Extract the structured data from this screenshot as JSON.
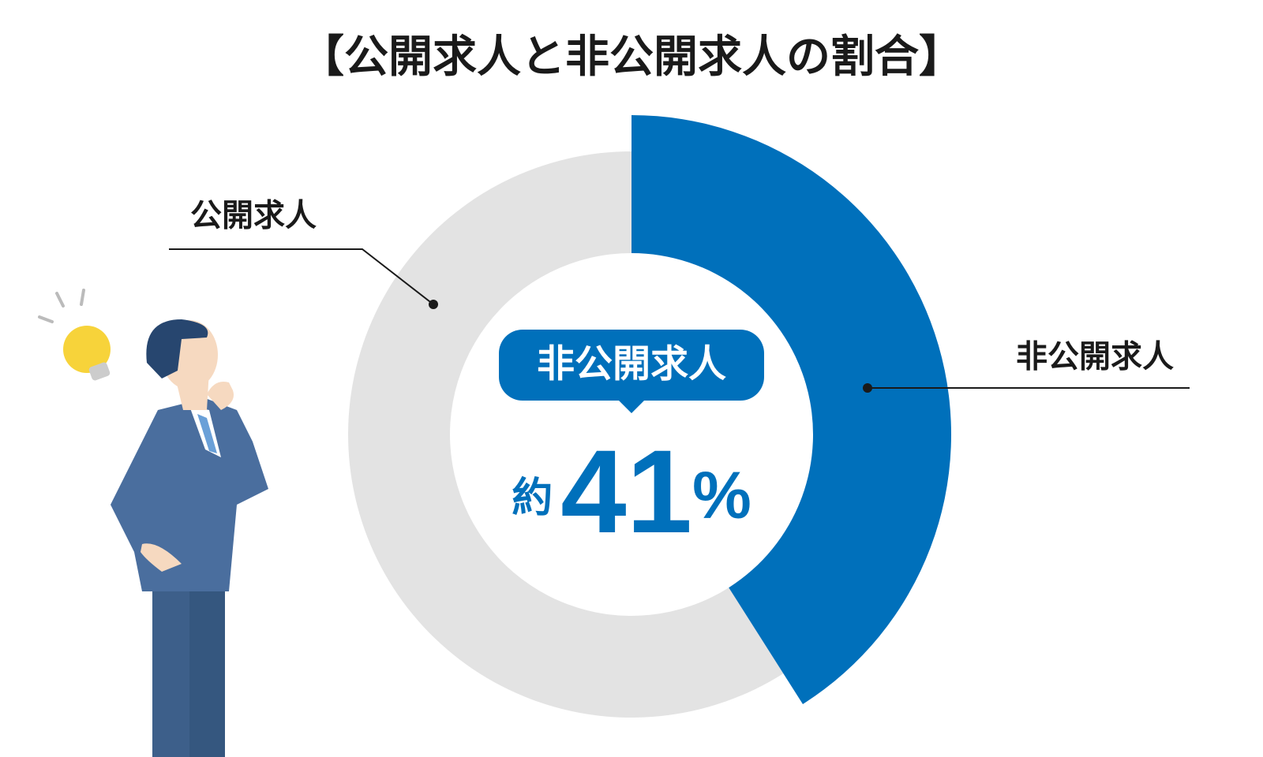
{
  "chart_data": {
    "type": "pie",
    "title": "【公開求人と非公開求人の割合】",
    "categories": [
      "公開求人",
      "非公開求人"
    ],
    "values": [
      59,
      41
    ],
    "value_labels": [
      null,
      "約41%"
    ],
    "colors": [
      "#e3e3e3",
      "#0070bb"
    ]
  }
}
